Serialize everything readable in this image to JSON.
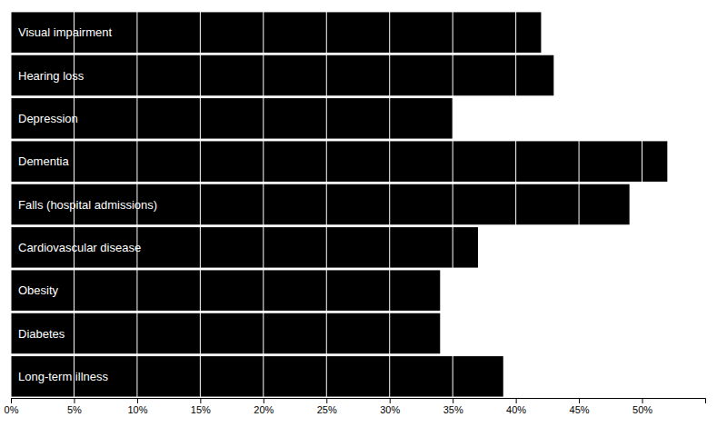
{
  "chart_data": {
    "type": "bar",
    "orientation": "horizontal",
    "categories": [
      "Long-term illness",
      "Diabetes",
      "Obesity",
      "Cardiovascular disease",
      "Falls (hospital admissions)",
      "Dementia",
      "Depression",
      "Hearing loss",
      "Visual impairment"
    ],
    "values": [
      39,
      34,
      34,
      37,
      49,
      52,
      35,
      43,
      42
    ],
    "color": "#000000",
    "xlim": [
      0,
      55
    ],
    "xticks": [
      {
        "value": 0,
        "label": "0%"
      },
      {
        "value": 5,
        "label": "5%"
      },
      {
        "value": 10,
        "label": "10%"
      },
      {
        "value": 15,
        "label": "15%"
      },
      {
        "value": 20,
        "label": "20%"
      },
      {
        "value": 25,
        "label": "25%"
      },
      {
        "value": 30,
        "label": "30%"
      },
      {
        "value": 35,
        "label": "35%"
      },
      {
        "value": 40,
        "label": "40%"
      },
      {
        "value": 45,
        "label": "45%"
      },
      {
        "value": 50,
        "label": "50%"
      }
    ],
    "grid": true,
    "tick_labels": "x"
  }
}
